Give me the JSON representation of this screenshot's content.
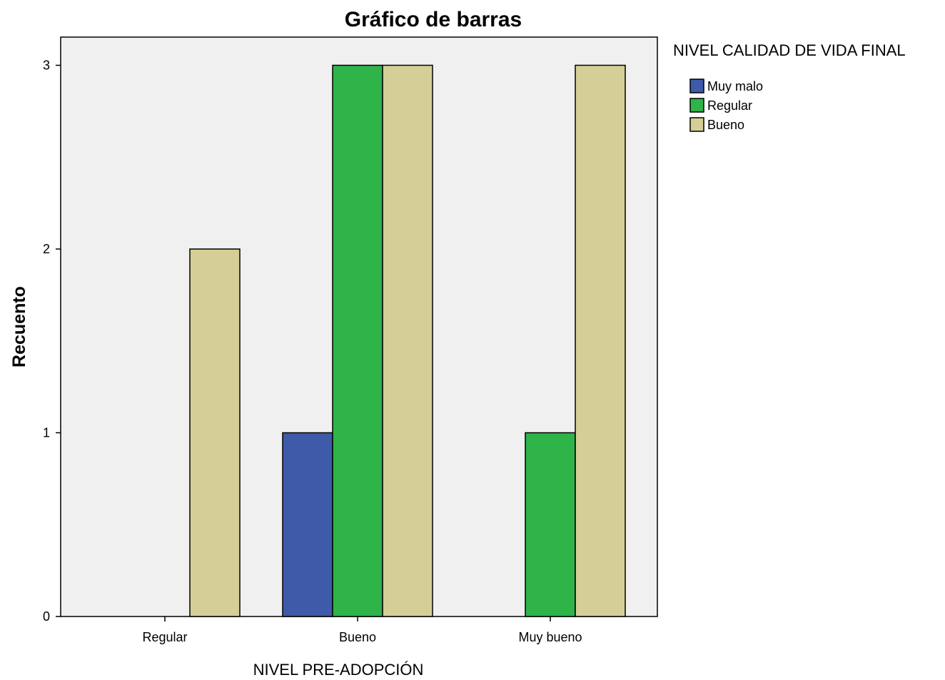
{
  "chart_data": {
    "type": "bar",
    "title": "Gráfico de barras",
    "xlabel": "NIVEL PRE-ADOPCIÓN",
    "ylabel": "Recuento",
    "categories": [
      "Regular",
      "Bueno",
      "Muy bueno"
    ],
    "series": [
      {
        "name": "Muy malo",
        "color": "#3f5aa9",
        "values": [
          0,
          1,
          0
        ]
      },
      {
        "name": "Regular",
        "color": "#2fb44a",
        "values": [
          0,
          3,
          1
        ]
      },
      {
        "name": "Bueno",
        "color": "#d5cf97",
        "values": [
          2,
          3,
          3
        ]
      }
    ],
    "ylim": [
      0,
      3.15
    ],
    "yticks": [
      0,
      1,
      2,
      3
    ],
    "grid": false,
    "plot_background": "#f0f0f0",
    "legend": {
      "title": "NIVEL CALIDAD DE VIDA FINAL",
      "placement": "top-right outside"
    }
  }
}
